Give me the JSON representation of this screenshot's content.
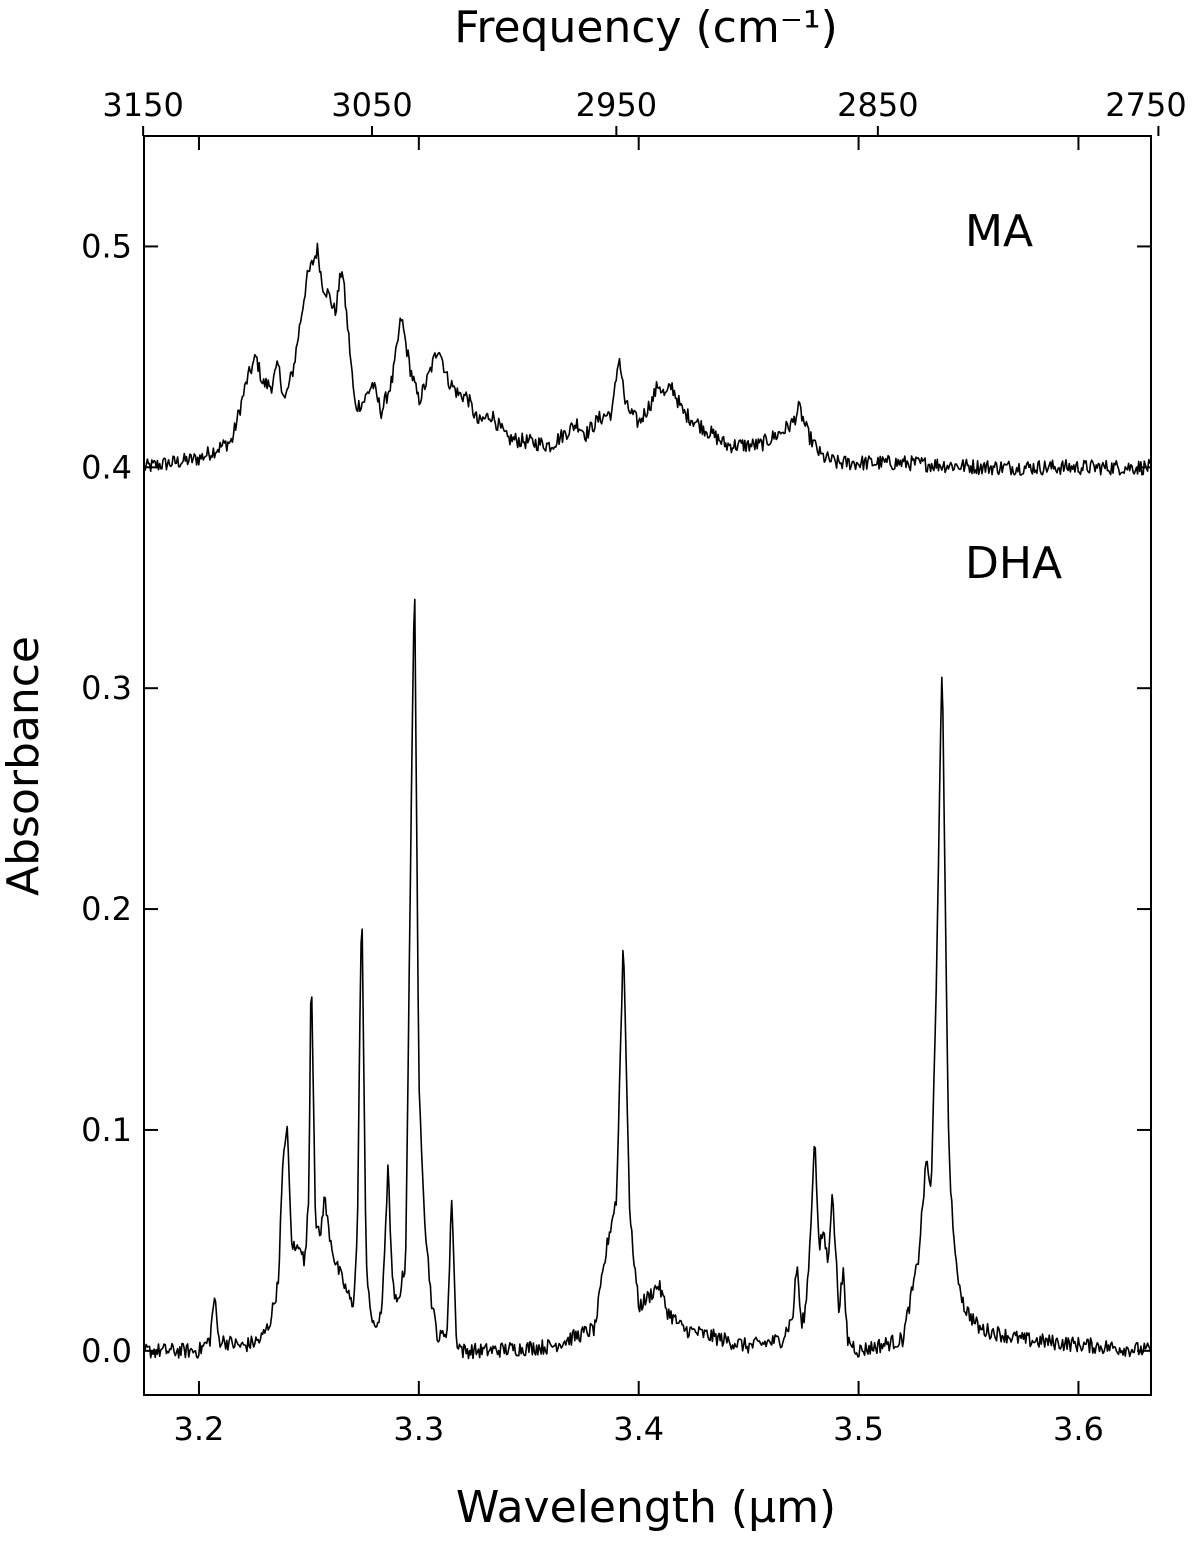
{
  "chart_data": {
    "type": "line",
    "xlabel": "Wavelength (μm)",
    "ylabel": "Absorbance",
    "top_xlabel": "Frequency (cm⁻¹)",
    "xlim": [
      3.175,
      3.633
    ],
    "ylim": [
      -0.02,
      0.55
    ],
    "x_ticks": [
      "3.2",
      "3.3",
      "3.4",
      "3.5",
      "3.6"
    ],
    "y_ticks": [
      "0.0",
      "0.1",
      "0.2",
      "0.3",
      "0.4",
      "0.5"
    ],
    "top_ticks": [
      "3150",
      "3050",
      "2950",
      "2850",
      "2750"
    ],
    "grid": false,
    "series": [
      {
        "name": "MA",
        "baseline": 0.4,
        "x": [
          3.175,
          3.2,
          3.215,
          3.222,
          3.226,
          3.229,
          3.233,
          3.236,
          3.239,
          3.243,
          3.249,
          3.254,
          3.256,
          3.259,
          3.262,
          3.265,
          3.268,
          3.271,
          3.275,
          3.279,
          3.283,
          3.288,
          3.292,
          3.296,
          3.3,
          3.304,
          3.309,
          3.313,
          3.318,
          3.322,
          3.327,
          3.333,
          3.34,
          3.36,
          3.372,
          3.376,
          3.382,
          3.388,
          3.391,
          3.394,
          3.4,
          3.406,
          3.409,
          3.412,
          3.415,
          3.42,
          3.44,
          3.455,
          3.465,
          3.47,
          3.473,
          3.477,
          3.483,
          3.49,
          3.52,
          3.56,
          3.6,
          3.633
        ],
        "y": [
          0.4,
          0.404,
          0.412,
          0.44,
          0.45,
          0.438,
          0.437,
          0.446,
          0.43,
          0.445,
          0.485,
          0.499,
          0.483,
          0.478,
          0.47,
          0.491,
          0.46,
          0.427,
          0.43,
          0.438,
          0.425,
          0.44,
          0.468,
          0.445,
          0.43,
          0.44,
          0.455,
          0.44,
          0.433,
          0.432,
          0.42,
          0.424,
          0.413,
          0.41,
          0.42,
          0.415,
          0.422,
          0.425,
          0.451,
          0.428,
          0.42,
          0.43,
          0.438,
          0.432,
          0.437,
          0.425,
          0.41,
          0.41,
          0.416,
          0.42,
          0.427,
          0.415,
          0.405,
          0.402,
          0.402,
          0.4,
          0.4,
          0.4
        ]
      },
      {
        "name": "DHA",
        "baseline": 0.0,
        "x": [
          3.175,
          3.2,
          3.205,
          3.207,
          3.209,
          3.22,
          3.228,
          3.232,
          3.236,
          3.238,
          3.24,
          3.242,
          3.244,
          3.246,
          3.248,
          3.25,
          3.251,
          3.253,
          3.255,
          3.257,
          3.259,
          3.262,
          3.266,
          3.27,
          3.272,
          3.274,
          3.276,
          3.279,
          3.283,
          3.286,
          3.288,
          3.29,
          3.294,
          3.296,
          3.298,
          3.3,
          3.303,
          3.306,
          3.309,
          3.313,
          3.315,
          3.317,
          3.32,
          3.33,
          3.36,
          3.38,
          3.386,
          3.39,
          3.393,
          3.396,
          3.4,
          3.405,
          3.409,
          3.413,
          3.42,
          3.45,
          3.465,
          3.47,
          3.472,
          3.474,
          3.476,
          3.478,
          3.48,
          3.482,
          3.484,
          3.486,
          3.488,
          3.491,
          3.493,
          3.495,
          3.5,
          3.52,
          3.527,
          3.531,
          3.533,
          3.535,
          3.538,
          3.541,
          3.544,
          3.548,
          3.555,
          3.575,
          3.633
        ],
        "y": [
          0.0,
          0.0,
          0.005,
          0.025,
          0.005,
          0.002,
          0.005,
          0.012,
          0.03,
          0.08,
          0.105,
          0.05,
          0.045,
          0.05,
          0.038,
          0.07,
          0.18,
          0.06,
          0.05,
          0.07,
          0.055,
          0.04,
          0.03,
          0.02,
          0.05,
          0.21,
          0.04,
          0.01,
          0.015,
          0.083,
          0.03,
          0.02,
          0.04,
          0.2,
          0.358,
          0.12,
          0.055,
          0.02,
          0.005,
          0.01,
          0.072,
          0.005,
          0.0,
          0.0,
          0.002,
          0.01,
          0.05,
          0.07,
          0.188,
          0.06,
          0.02,
          0.025,
          0.03,
          0.018,
          0.01,
          0.002,
          0.005,
          0.015,
          0.04,
          0.01,
          0.02,
          0.05,
          0.099,
          0.045,
          0.055,
          0.04,
          0.072,
          0.02,
          0.035,
          0.005,
          0.0,
          0.005,
          0.04,
          0.088,
          0.07,
          0.15,
          0.312,
          0.09,
          0.04,
          0.02,
          0.01,
          0.005,
          0.0
        ]
      }
    ]
  }
}
